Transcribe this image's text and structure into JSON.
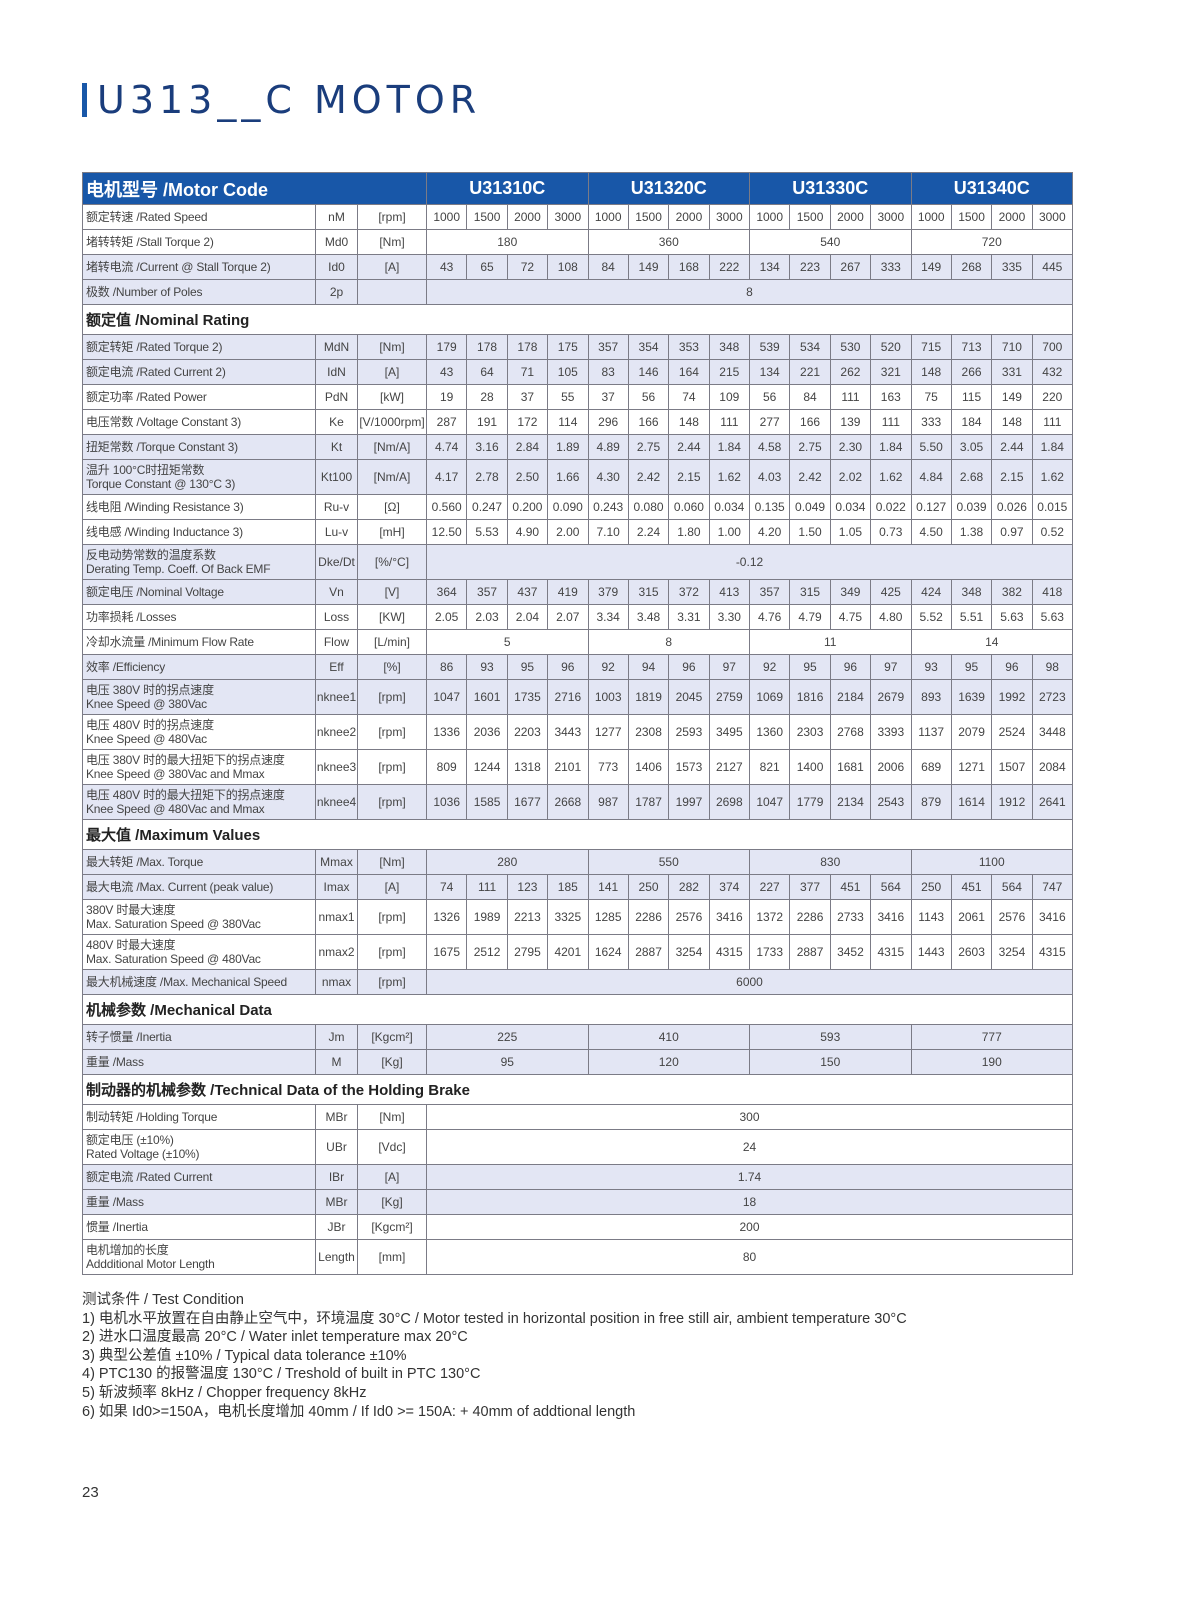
{
  "title": "U313__C MOTOR",
  "colors": {
    "header_blue": "#1857a8",
    "title_blue": "#1a3d7c",
    "row_shade": "#e3e6f4"
  },
  "table": {
    "header_label": "电机型号 /Motor Code",
    "models": [
      "U31310C",
      "U31320C",
      "U31330C",
      "U31340C"
    ],
    "rows": [
      {
        "label": "额定转速 /Rated Speed",
        "sym": "nM",
        "unit": "[rpm]",
        "values": [
          "1000",
          "1500",
          "2000",
          "3000",
          "1000",
          "1500",
          "2000",
          "3000",
          "1000",
          "1500",
          "2000",
          "3000",
          "1000",
          "1500",
          "2000",
          "3000"
        ]
      },
      {
        "label": "堵转转矩 /Stall Torque 2)",
        "sym": "Md0",
        "unit": "[Nm]",
        "values": [
          "180",
          "360",
          "540",
          "720"
        ]
      },
      {
        "label": "堵转电流 /Current @ Stall Torque 2)",
        "sym": "Id0",
        "unit": "[A]",
        "values": [
          "43",
          "65",
          "72",
          "108",
          "84",
          "149",
          "168",
          "222",
          "134",
          "223",
          "267",
          "333",
          "149",
          "268",
          "335",
          "445"
        ]
      },
      {
        "label": "极数 /Number of Poles",
        "sym": "2p",
        "unit": "",
        "values": [
          "8"
        ]
      },
      {
        "section": "额定值 /Nominal Rating"
      },
      {
        "label": "额定转矩 /Rated Torque 2)",
        "sym": "MdN",
        "unit": "[Nm]",
        "values": [
          "179",
          "178",
          "178",
          "175",
          "357",
          "354",
          "353",
          "348",
          "539",
          "534",
          "530",
          "520",
          "715",
          "713",
          "710",
          "700"
        ]
      },
      {
        "label": "额定电流 /Rated Current 2)",
        "sym": "IdN",
        "unit": "[A]",
        "values": [
          "43",
          "64",
          "71",
          "105",
          "83",
          "146",
          "164",
          "215",
          "134",
          "221",
          "262",
          "321",
          "148",
          "266",
          "331",
          "432"
        ]
      },
      {
        "label": "额定功率 /Rated Power",
        "sym": "PdN",
        "unit": "[kW]",
        "values": [
          "19",
          "28",
          "37",
          "55",
          "37",
          "56",
          "74",
          "109",
          "56",
          "84",
          "111",
          "163",
          "75",
          "115",
          "149",
          "220"
        ]
      },
      {
        "label": "电压常数 /Voltage Constant 3)",
        "sym": "Ke",
        "unit": "[V/1000rpm]",
        "values": [
          "287",
          "191",
          "172",
          "114",
          "296",
          "166",
          "148",
          "111",
          "277",
          "166",
          "139",
          "111",
          "333",
          "184",
          "148",
          "111"
        ]
      },
      {
        "label": "扭矩常数 /Torque Constant 3)",
        "sym": "Kt",
        "unit": "[Nm/A]",
        "values": [
          "4.74",
          "3.16",
          "2.84",
          "1.89",
          "4.89",
          "2.75",
          "2.44",
          "1.84",
          "4.58",
          "2.75",
          "2.30",
          "1.84",
          "5.50",
          "3.05",
          "2.44",
          "1.84"
        ]
      },
      {
        "label": "温升 100°C时扭矩常数",
        "label2": "Torque Constant @ 130°C 3)",
        "sym": "Kt100",
        "unit": "[Nm/A]",
        "values": [
          "4.17",
          "2.78",
          "2.50",
          "1.66",
          "4.30",
          "2.42",
          "2.15",
          "1.62",
          "4.03",
          "2.42",
          "2.02",
          "1.62",
          "4.84",
          "2.68",
          "2.15",
          "1.62"
        ]
      },
      {
        "label": "线电阻 /Winding Resistance 3)",
        "sym": "Ru-v",
        "unit": "[Ω]",
        "values": [
          "0.560",
          "0.247",
          "0.200",
          "0.090",
          "0.243",
          "0.080",
          "0.060",
          "0.034",
          "0.135",
          "0.049",
          "0.034",
          "0.022",
          "0.127",
          "0.039",
          "0.026",
          "0.015"
        ]
      },
      {
        "label": "线电感 /Winding Inductance 3)",
        "sym": "Lu-v",
        "unit": "[mH]",
        "values": [
          "12.50",
          "5.53",
          "4.90",
          "2.00",
          "7.10",
          "2.24",
          "1.80",
          "1.00",
          "4.20",
          "1.50",
          "1.05",
          "0.73",
          "4.50",
          "1.38",
          "0.97",
          "0.52"
        ]
      },
      {
        "label": "反电动势常数的温度系数",
        "label2": "Derating Temp. Coeff. Of Back EMF",
        "sym": "Dke/Dt",
        "unit": "[%/°C]",
        "values": [
          "-0.12"
        ]
      },
      {
        "label": "额定电压 /Nominal Voltage",
        "sym": "Vn",
        "unit": "[V]",
        "values": [
          "364",
          "357",
          "437",
          "419",
          "379",
          "315",
          "372",
          "413",
          "357",
          "315",
          "349",
          "425",
          "424",
          "348",
          "382",
          "418"
        ]
      },
      {
        "label": "功率损耗 /Losses",
        "sym": "Loss",
        "unit": "[KW]",
        "values": [
          "2.05",
          "2.03",
          "2.04",
          "2.07",
          "3.34",
          "3.48",
          "3.31",
          "3.30",
          "4.76",
          "4.79",
          "4.75",
          "4.80",
          "5.52",
          "5.51",
          "5.63",
          "5.63"
        ]
      },
      {
        "label": "冷却水流量 /Minimum Flow Rate",
        "sym": "Flow",
        "unit": "[L/min]",
        "values": [
          "5",
          "8",
          "11",
          "14"
        ]
      },
      {
        "label": "效率 /Efficiency",
        "sym": "Eff",
        "unit": "[%]",
        "values": [
          "86",
          "93",
          "95",
          "96",
          "92",
          "94",
          "96",
          "97",
          "92",
          "95",
          "96",
          "97",
          "93",
          "95",
          "96",
          "98"
        ]
      },
      {
        "label": "电压 380V 时的拐点速度",
        "label2": "Knee Speed @ 380Vac",
        "sym": "nknee1",
        "unit": "[rpm]",
        "values": [
          "1047",
          "1601",
          "1735",
          "2716",
          "1003",
          "1819",
          "2045",
          "2759",
          "1069",
          "1816",
          "2184",
          "2679",
          "893",
          "1639",
          "1992",
          "2723"
        ]
      },
      {
        "label": "电压 480V 时的拐点速度",
        "label2": "Knee Speed @ 480Vac",
        "sym": "nknee2",
        "unit": "[rpm]",
        "values": [
          "1336",
          "2036",
          "2203",
          "3443",
          "1277",
          "2308",
          "2593",
          "3495",
          "1360",
          "2303",
          "2768",
          "3393",
          "1137",
          "2079",
          "2524",
          "3448"
        ]
      },
      {
        "label": "电压 380V 时的最大扭矩下的拐点速度",
        "label2": "Knee Speed @ 380Vac and Mmax",
        "sym": "nknee3",
        "unit": "[rpm]",
        "values": [
          "809",
          "1244",
          "1318",
          "2101",
          "773",
          "1406",
          "1573",
          "2127",
          "821",
          "1400",
          "1681",
          "2006",
          "689",
          "1271",
          "1507",
          "2084"
        ]
      },
      {
        "label": "电压 480V 时的最大扭矩下的拐点速度",
        "label2": "Knee Speed @ 480Vac and Mmax",
        "sym": "nknee4",
        "unit": "[rpm]",
        "values": [
          "1036",
          "1585",
          "1677",
          "2668",
          "987",
          "1787",
          "1997",
          "2698",
          "1047",
          "1779",
          "2134",
          "2543",
          "879",
          "1614",
          "1912",
          "2641"
        ]
      },
      {
        "section": "最大值 /Maximum Values"
      },
      {
        "label": "最大转矩 /Max. Torque",
        "sym": "Mmax",
        "unit": "[Nm]",
        "values": [
          "280",
          "550",
          "830",
          "1100"
        ]
      },
      {
        "label": "最大电流 /Max. Current (peak value)",
        "sym": "Imax",
        "unit": "[A]",
        "values": [
          "74",
          "111",
          "123",
          "185",
          "141",
          "250",
          "282",
          "374",
          "227",
          "377",
          "451",
          "564",
          "250",
          "451",
          "564",
          "747"
        ]
      },
      {
        "label": "380V 时最大速度",
        "label2": "Max. Saturation Speed @ 380Vac",
        "sym": "nmax1",
        "unit": "[rpm]",
        "values": [
          "1326",
          "1989",
          "2213",
          "3325",
          "1285",
          "2286",
          "2576",
          "3416",
          "1372",
          "2286",
          "2733",
          "3416",
          "1143",
          "2061",
          "2576",
          "3416"
        ]
      },
      {
        "label": "480V 时最大速度",
        "label2": "Max. Saturation Speed @ 480Vac",
        "sym": "nmax2",
        "unit": "[rpm]",
        "values": [
          "1675",
          "2512",
          "2795",
          "4201",
          "1624",
          "2887",
          "3254",
          "4315",
          "1733",
          "2887",
          "3452",
          "4315",
          "1443",
          "2603",
          "3254",
          "4315"
        ]
      },
      {
        "label": "最大机械速度 /Max. Mechanical Speed",
        "sym": "nmax",
        "unit": "[rpm]",
        "values": [
          "6000"
        ]
      },
      {
        "section": "机械参数 /Mechanical Data"
      },
      {
        "label": "转子惯量 /Inertia",
        "sym": "Jm",
        "unit": "[Kgcm²]",
        "values": [
          "225",
          "410",
          "593",
          "777"
        ]
      },
      {
        "label": "重量 /Mass",
        "sym": "M",
        "unit": "[Kg]",
        "values": [
          "95",
          "120",
          "150",
          "190"
        ]
      },
      {
        "section": "制动器的机械参数 /Technical Data of the Holding Brake"
      },
      {
        "label": "制动转矩 /Holding Torque",
        "sym": "MBr",
        "unit": "[Nm]",
        "values": [
          "300"
        ]
      },
      {
        "label": "额定电压 (±10%)",
        "label2": "Rated Voltage (±10%)",
        "sym": "UBr",
        "unit": "[Vdc]",
        "values": [
          "24"
        ]
      },
      {
        "label": "额定电流 /Rated Current",
        "sym": "IBr",
        "unit": "[A]",
        "values": [
          "1.74"
        ]
      },
      {
        "label": "重量 /Mass",
        "sym": "MBr",
        "unit": "[Kg]",
        "values": [
          "18"
        ]
      },
      {
        "label": "惯量 /Inertia",
        "sym": "JBr",
        "unit": "[Kgcm²]",
        "values": [
          "200"
        ]
      },
      {
        "label": "电机增加的长度",
        "label2": "Addditional Motor Length",
        "sym": "Length",
        "unit": "[mm]",
        "values": [
          "80"
        ]
      }
    ]
  },
  "notes": {
    "heading": "测试条件 / Test Condition",
    "items": [
      "1) 电机水平放置在自由静止空气中，环境温度 30°C / Motor tested in horizontal position in free still air, ambient temperature 30°C",
      "2) 进水口温度最高 20°C / Water inlet temperature max 20°C",
      "3) 典型公差值 ±10% / Typical data tolerance ±10%",
      "4) PTC130 的报警温度 130°C / Treshold of built in PTC 130°C",
      "5) 斩波频率 8kHz / Chopper frequency 8kHz",
      "6) 如果 Id0>=150A，电机长度增加 40mm / If Id0 >= 150A: + 40mm of addtional length"
    ]
  },
  "page_number": "23"
}
